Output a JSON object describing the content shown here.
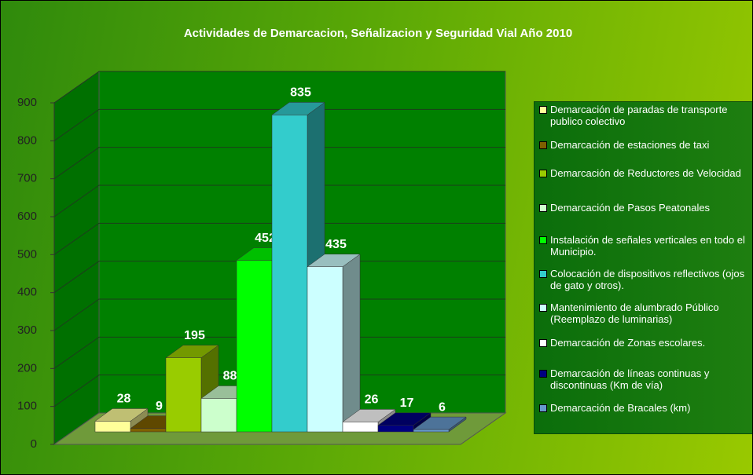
{
  "chart_data": {
    "type": "bar3d",
    "title": "Actividades de Demarcacion, Señalizacion y Seguridad Vial Año 2010",
    "categories": [
      "Demarcación de paradas de transporte publico colectivo",
      "Demarcación de estaciones de taxi",
      "Demarcación de Reductores de Velocidad",
      "Demarcación de Pasos Peatonales",
      "Instalación de señales verticales en todo el Municipio.",
      "Colocación de dispositivos reflectivos (ojos de gato y otros).",
      "Mantenimiento de alumbrado Público (Reemplazo de luminarias)",
      "Demarcación de Zonas escolares.",
      "Demarcación de líneas continuas y discontinuas (Km de vía)",
      "Demarcación de Bracales  (km)"
    ],
    "values": [
      28,
      9,
      195,
      88,
      452,
      835,
      435,
      26,
      17,
      6
    ],
    "colors": [
      "#ffff99",
      "#7f6000",
      "#99cc00",
      "#ccffcc",
      "#00ff00",
      "#33cccc",
      "#ccffff",
      "#ffffff",
      "#000080",
      "#6699cc"
    ],
    "ylim": [
      0,
      900
    ],
    "yticks": [
      0,
      100,
      200,
      300,
      400,
      500,
      600,
      700,
      800,
      900
    ],
    "grid": true,
    "legend": "right"
  }
}
